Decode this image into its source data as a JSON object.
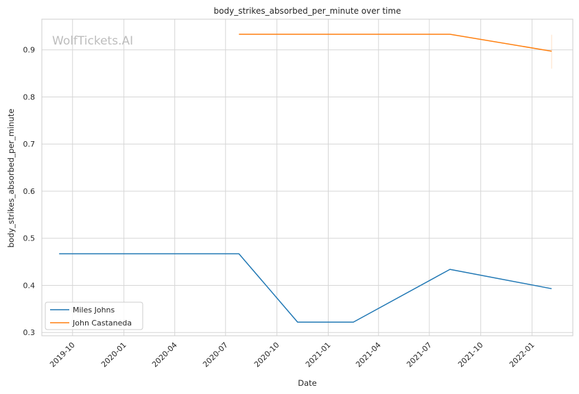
{
  "watermark": "WolfTickets.AI",
  "chart_data": {
    "type": "line",
    "title": "body_strikes_absorbed_per_minute over time",
    "xlabel": "Date",
    "ylabel": "body_strikes_absorbed_per_minute",
    "x_ticks": [
      "2019-10",
      "2020-01",
      "2020-04",
      "2020-07",
      "2020-10",
      "2021-01",
      "2021-04",
      "2021-07",
      "2021-10",
      "2022-01"
    ],
    "y_ticks": [
      0.3,
      0.4,
      0.5,
      0.6,
      0.7,
      0.8,
      0.9
    ],
    "xlim": [
      "2019-08-07",
      "2022-03-15"
    ],
    "ylim": [
      0.293,
      0.965
    ],
    "grid": true,
    "legend_position": "lower-left",
    "series": [
      {
        "name": "Miles Johns",
        "color": "#1f77b4",
        "points": [
          {
            "x": "2019-09-07",
            "y": 0.467
          },
          {
            "x": "2020-07-25",
            "y": 0.467
          },
          {
            "x": "2020-11-07",
            "y": 0.322
          },
          {
            "x": "2021-02-15",
            "y": 0.322
          },
          {
            "x": "2021-08-07",
            "y": 0.434
          },
          {
            "x": "2022-02-05",
            "y": 0.393
          }
        ]
      },
      {
        "name": "John Castaneda",
        "color": "#ff7f0e",
        "points": [
          {
            "x": "2020-07-25",
            "y": 0.933
          },
          {
            "x": "2021-08-07",
            "y": 0.933
          },
          {
            "x": "2022-02-05",
            "y": 0.897
          }
        ],
        "error_band": {
          "x": "2022-02-05",
          "low": 0.86,
          "high": 0.932
        }
      }
    ]
  }
}
